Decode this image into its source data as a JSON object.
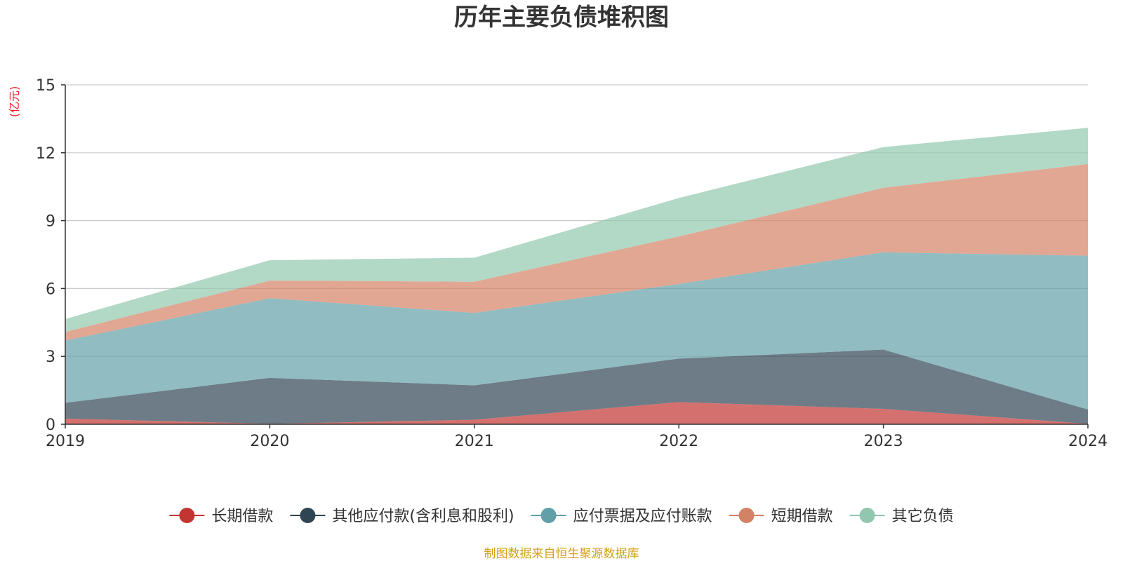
{
  "chart_data": {
    "type": "area",
    "stacked": true,
    "title": "历年主要负债堆积图",
    "unit_label": "(亿元)",
    "x": [
      "2019",
      "2020",
      "2021",
      "2022",
      "2023",
      "2024"
    ],
    "ylim": [
      0,
      15
    ],
    "yticks": [
      "0",
      "3",
      "6",
      "9",
      "12",
      "15"
    ],
    "grid": true,
    "legend_position": "bottom",
    "series": [
      {
        "name": "长期借款",
        "color": "#c23531",
        "values": [
          0.25,
          0.02,
          0.2,
          0.98,
          0.68,
          0.02
        ]
      },
      {
        "name": "其他应付款(含利息和股利)",
        "color": "#2f4554",
        "values": [
          0.7,
          2.03,
          1.52,
          1.92,
          2.62,
          0.63
        ]
      },
      {
        "name": "应付票据及应付账款",
        "color": "#61a0a8",
        "values": [
          2.75,
          3.52,
          3.2,
          3.3,
          4.3,
          6.8
        ]
      },
      {
        "name": "短期借款",
        "color": "#d48265",
        "values": [
          0.38,
          0.78,
          1.38,
          2.1,
          2.85,
          4.05
        ]
      },
      {
        "name": "其它负债",
        "color": "#91c7ae",
        "values": [
          0.57,
          0.9,
          1.06,
          1.7,
          1.8,
          1.6
        ]
      }
    ]
  },
  "footer": {
    "source": "制图数据来自恒生聚源数据库",
    "source_color": "#d4a017"
  },
  "colors": {
    "unit_label": "#e8202a",
    "axis": "#333333",
    "grid": "#cccccc"
  }
}
